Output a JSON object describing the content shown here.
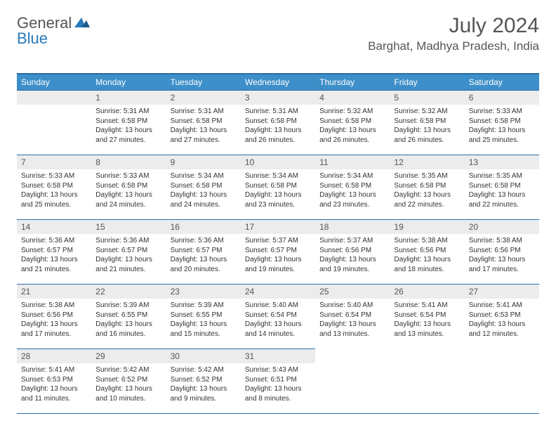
{
  "logo": {
    "general": "General",
    "blue": "Blue"
  },
  "title": "July 2024",
  "location": "Barghat, Madhya Pradesh, India",
  "colors": {
    "header_bg": "#3d8fc9",
    "header_border": "#2b6ca3",
    "daynum_bg": "#ececec",
    "text": "#333333",
    "title_text": "#555555",
    "logo_blue": "#2b7bba",
    "background": "#ffffff"
  },
  "typography": {
    "title_fontsize": 30,
    "location_fontsize": 17,
    "logo_fontsize": 22,
    "header_fontsize": 12,
    "daynum_fontsize": 12,
    "body_fontsize": 10
  },
  "weekdays": [
    "Sunday",
    "Monday",
    "Tuesday",
    "Wednesday",
    "Thursday",
    "Friday",
    "Saturday"
  ],
  "grid": {
    "columns": 7,
    "rows": 5,
    "start_weekday_index": 1,
    "days_in_month": 31
  },
  "days": {
    "1": {
      "sunrise": "5:31 AM",
      "sunset": "6:58 PM",
      "daylight": "13 hours and 27 minutes."
    },
    "2": {
      "sunrise": "5:31 AM",
      "sunset": "6:58 PM",
      "daylight": "13 hours and 27 minutes."
    },
    "3": {
      "sunrise": "5:31 AM",
      "sunset": "6:58 PM",
      "daylight": "13 hours and 26 minutes."
    },
    "4": {
      "sunrise": "5:32 AM",
      "sunset": "6:58 PM",
      "daylight": "13 hours and 26 minutes."
    },
    "5": {
      "sunrise": "5:32 AM",
      "sunset": "6:58 PM",
      "daylight": "13 hours and 26 minutes."
    },
    "6": {
      "sunrise": "5:33 AM",
      "sunset": "6:58 PM",
      "daylight": "13 hours and 25 minutes."
    },
    "7": {
      "sunrise": "5:33 AM",
      "sunset": "6:58 PM",
      "daylight": "13 hours and 25 minutes."
    },
    "8": {
      "sunrise": "5:33 AM",
      "sunset": "6:58 PM",
      "daylight": "13 hours and 24 minutes."
    },
    "9": {
      "sunrise": "5:34 AM",
      "sunset": "6:58 PM",
      "daylight": "13 hours and 24 minutes."
    },
    "10": {
      "sunrise": "5:34 AM",
      "sunset": "6:58 PM",
      "daylight": "13 hours and 23 minutes."
    },
    "11": {
      "sunrise": "5:34 AM",
      "sunset": "6:58 PM",
      "daylight": "13 hours and 23 minutes."
    },
    "12": {
      "sunrise": "5:35 AM",
      "sunset": "6:58 PM",
      "daylight": "13 hours and 22 minutes."
    },
    "13": {
      "sunrise": "5:35 AM",
      "sunset": "6:58 PM",
      "daylight": "13 hours and 22 minutes."
    },
    "14": {
      "sunrise": "5:36 AM",
      "sunset": "6:57 PM",
      "daylight": "13 hours and 21 minutes."
    },
    "15": {
      "sunrise": "5:36 AM",
      "sunset": "6:57 PM",
      "daylight": "13 hours and 21 minutes."
    },
    "16": {
      "sunrise": "5:36 AM",
      "sunset": "6:57 PM",
      "daylight": "13 hours and 20 minutes."
    },
    "17": {
      "sunrise": "5:37 AM",
      "sunset": "6:57 PM",
      "daylight": "13 hours and 19 minutes."
    },
    "18": {
      "sunrise": "5:37 AM",
      "sunset": "6:56 PM",
      "daylight": "13 hours and 19 minutes."
    },
    "19": {
      "sunrise": "5:38 AM",
      "sunset": "6:56 PM",
      "daylight": "13 hours and 18 minutes."
    },
    "20": {
      "sunrise": "5:38 AM",
      "sunset": "6:56 PM",
      "daylight": "13 hours and 17 minutes."
    },
    "21": {
      "sunrise": "5:38 AM",
      "sunset": "6:56 PM",
      "daylight": "13 hours and 17 minutes."
    },
    "22": {
      "sunrise": "5:39 AM",
      "sunset": "6:55 PM",
      "daylight": "13 hours and 16 minutes."
    },
    "23": {
      "sunrise": "5:39 AM",
      "sunset": "6:55 PM",
      "daylight": "13 hours and 15 minutes."
    },
    "24": {
      "sunrise": "5:40 AM",
      "sunset": "6:54 PM",
      "daylight": "13 hours and 14 minutes."
    },
    "25": {
      "sunrise": "5:40 AM",
      "sunset": "6:54 PM",
      "daylight": "13 hours and 13 minutes."
    },
    "26": {
      "sunrise": "5:41 AM",
      "sunset": "6:54 PM",
      "daylight": "13 hours and 13 minutes."
    },
    "27": {
      "sunrise": "5:41 AM",
      "sunset": "6:53 PM",
      "daylight": "13 hours and 12 minutes."
    },
    "28": {
      "sunrise": "5:41 AM",
      "sunset": "6:53 PM",
      "daylight": "13 hours and 11 minutes."
    },
    "29": {
      "sunrise": "5:42 AM",
      "sunset": "6:52 PM",
      "daylight": "13 hours and 10 minutes."
    },
    "30": {
      "sunrise": "5:42 AM",
      "sunset": "6:52 PM",
      "daylight": "13 hours and 9 minutes."
    },
    "31": {
      "sunrise": "5:43 AM",
      "sunset": "6:51 PM",
      "daylight": "13 hours and 8 minutes."
    }
  },
  "labels": {
    "sunrise": "Sunrise:",
    "sunset": "Sunset:",
    "daylight": "Daylight:"
  }
}
